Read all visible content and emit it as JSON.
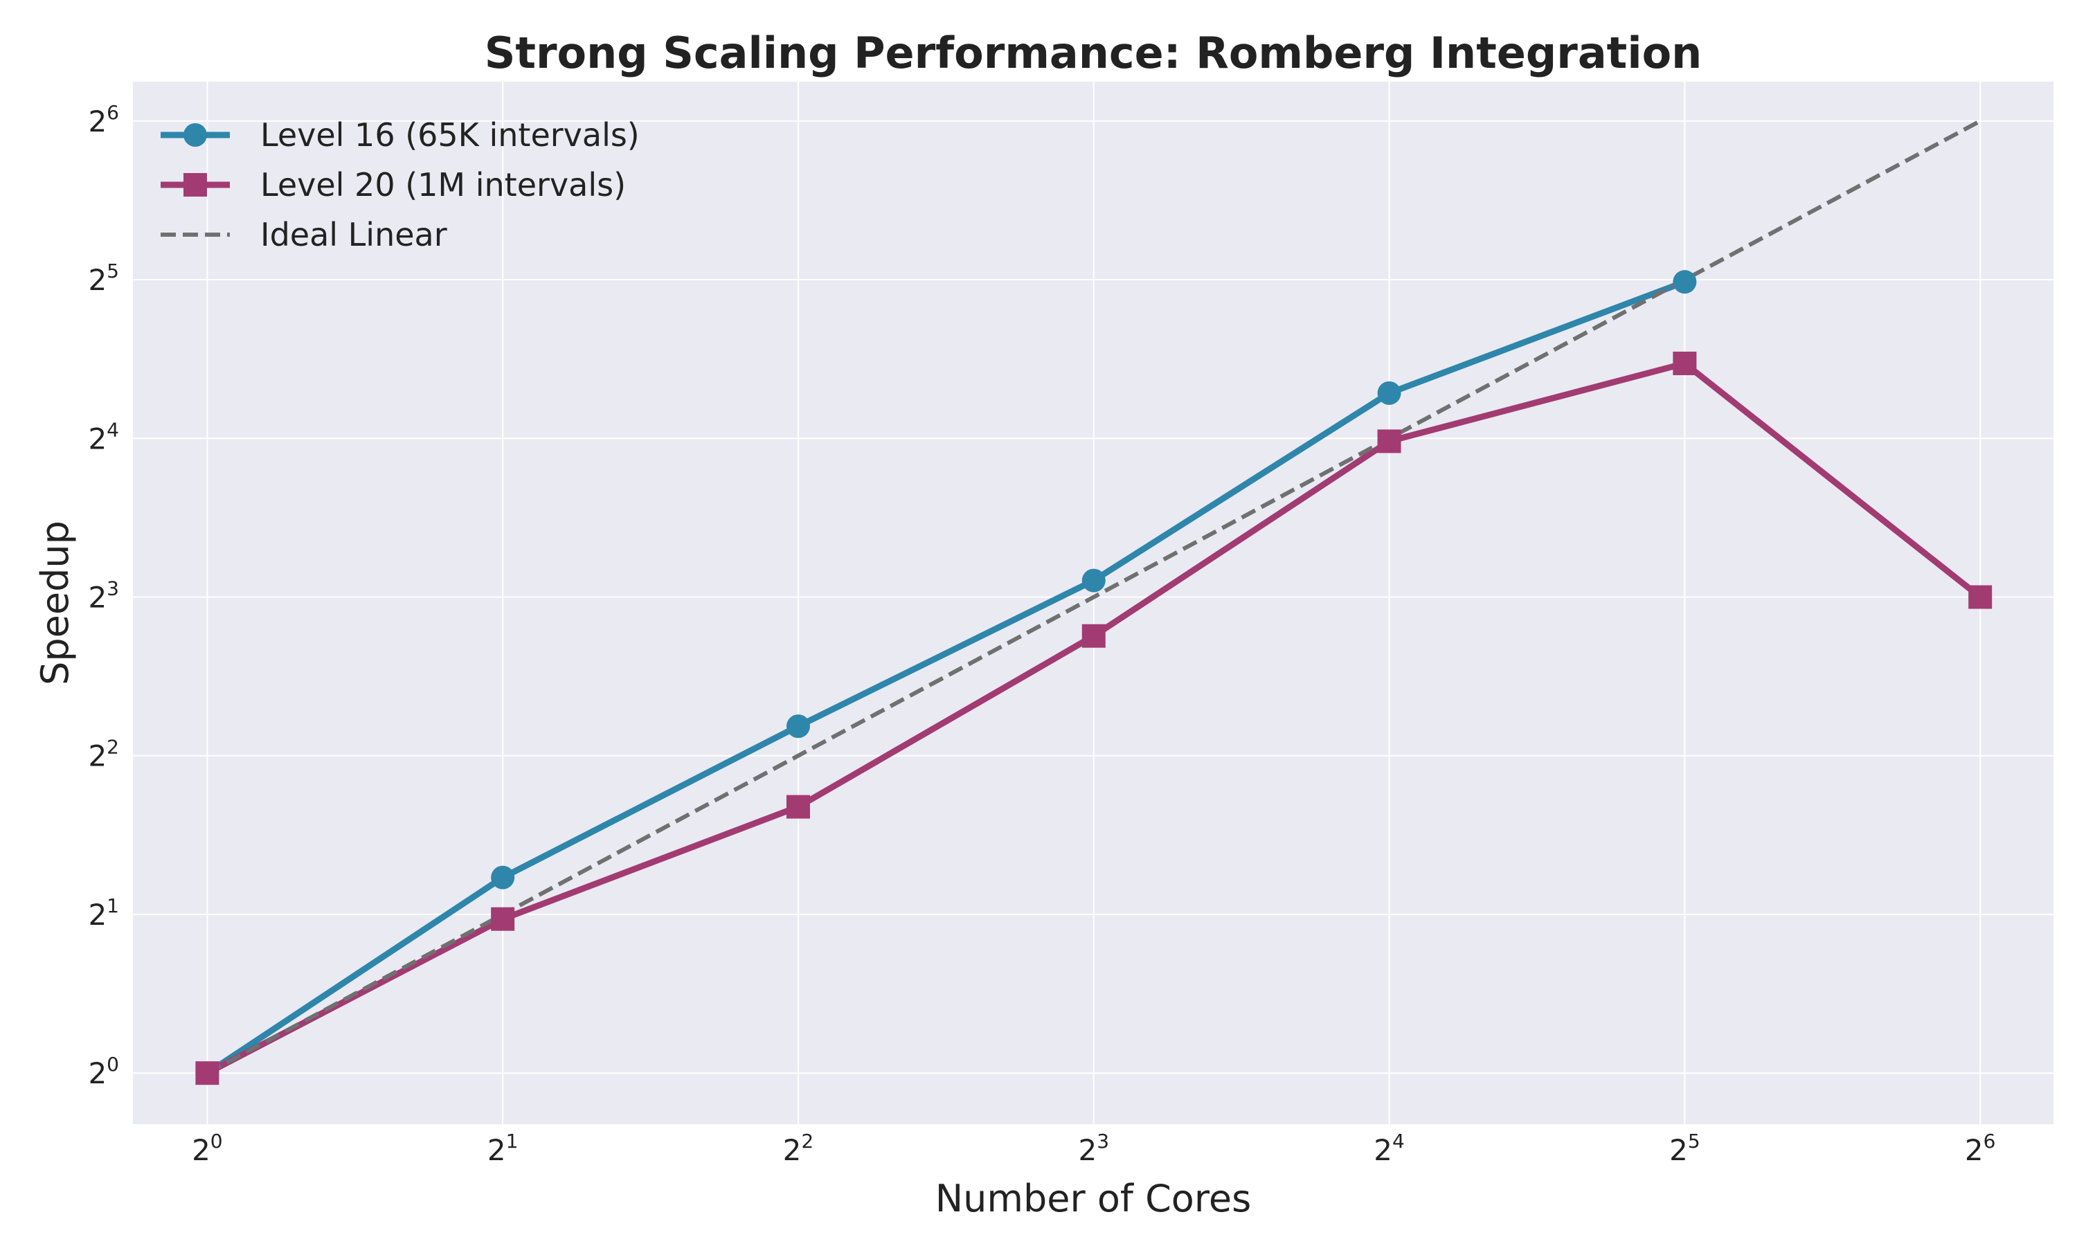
{
  "chart_data": {
    "type": "line",
    "title": "Strong Scaling Performance: Romberg Integration",
    "xlabel": "Number of Cores",
    "ylabel": "Speedup",
    "xscale": "log2",
    "yscale": "log2",
    "xlim": [
      0.84,
      76
    ],
    "ylim": [
      0.8,
      76
    ],
    "grid": true,
    "legend": "top-left",
    "x_ticks": [
      {
        "base": "2",
        "exp": "0",
        "value": 1
      },
      {
        "base": "2",
        "exp": "1",
        "value": 2
      },
      {
        "base": "2",
        "exp": "2",
        "value": 4
      },
      {
        "base": "2",
        "exp": "3",
        "value": 8
      },
      {
        "base": "2",
        "exp": "4",
        "value": 16
      },
      {
        "base": "2",
        "exp": "5",
        "value": 32
      },
      {
        "base": "2",
        "exp": "6",
        "value": 64
      }
    ],
    "y_ticks": [
      {
        "base": "2",
        "exp": "0",
        "value": 1
      },
      {
        "base": "2",
        "exp": "1",
        "value": 2
      },
      {
        "base": "2",
        "exp": "2",
        "value": 4
      },
      {
        "base": "2",
        "exp": "3",
        "value": 8
      },
      {
        "base": "2",
        "exp": "4",
        "value": 16
      },
      {
        "base": "2",
        "exp": "5",
        "value": 32
      },
      {
        "base": "2",
        "exp": "6",
        "value": 64
      }
    ],
    "series": [
      {
        "name": "Level 16 (65K intervals)",
        "color": "#2e86ab",
        "marker": "circle",
        "x": [
          1,
          2,
          4,
          8,
          16,
          32
        ],
        "y": [
          1,
          2.35,
          4.55,
          8.6,
          19.5,
          31.7
        ]
      },
      {
        "name": "Level 20 (1M intervals)",
        "color": "#a23b72",
        "marker": "square",
        "x": [
          1,
          2,
          4,
          8,
          16,
          32,
          64
        ],
        "y": [
          1,
          1.96,
          3.2,
          6.75,
          15.8,
          22.2,
          8.0
        ]
      },
      {
        "name": "Ideal Linear",
        "color": "#707070",
        "marker": "none",
        "dashed": true,
        "x": [
          1,
          2,
          4,
          8,
          16,
          32,
          64
        ],
        "y": [
          1,
          2,
          4,
          8,
          16,
          32,
          64
        ]
      }
    ]
  }
}
